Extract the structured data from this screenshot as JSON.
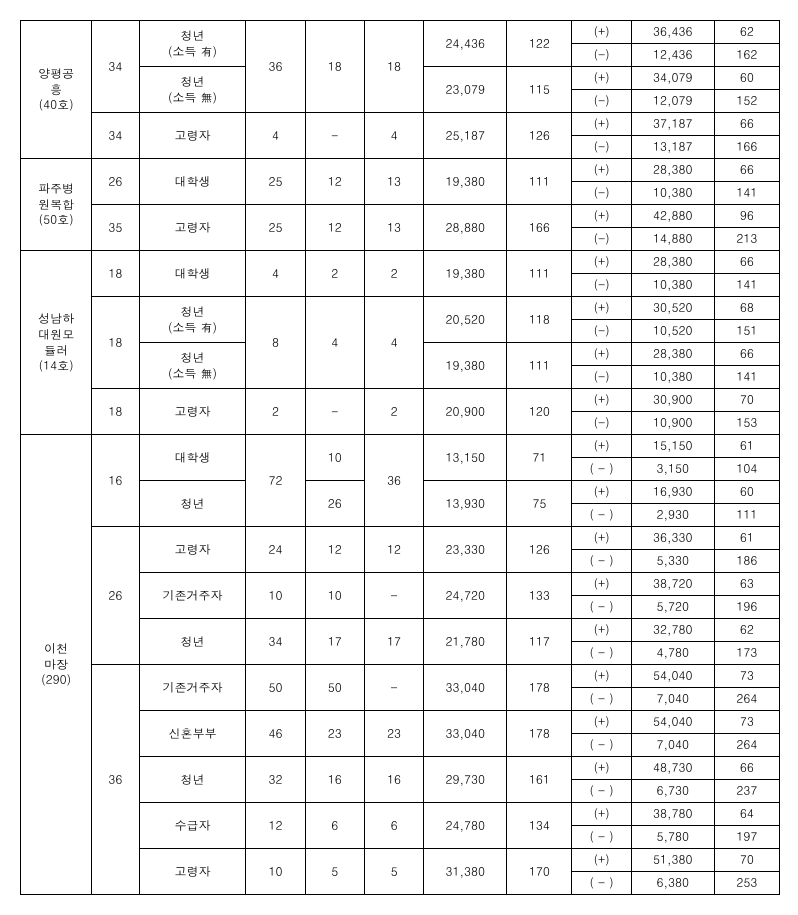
{
  "colWidths": [
    "60px",
    "40px",
    "90px",
    "50px",
    "50px",
    "50px",
    "70px",
    "55px",
    "50px",
    "70px",
    "55px"
  ],
  "rows": [
    [
      {
        "t": "양평공\n흥\n(40호)",
        "rs": 6,
        "cls": "c0"
      },
      {
        "t": "34",
        "rs": 4,
        "cls": "c1"
      },
      {
        "t": "청년\n(소득 有)",
        "rs": 2,
        "cls": "c2"
      },
      {
        "t": "36",
        "rs": 4,
        "cls": "c3"
      },
      {
        "t": "18",
        "rs": 4,
        "cls": "c4"
      },
      {
        "t": "18",
        "rs": 4,
        "cls": "c5"
      },
      {
        "t": "24,436",
        "rs": 2,
        "cls": "c6"
      },
      {
        "t": "122",
        "rs": 2,
        "cls": "c7"
      },
      {
        "t": "(+)",
        "cls": "c8"
      },
      {
        "t": "36,436",
        "cls": "c9"
      },
      {
        "t": "62",
        "cls": "c10"
      }
    ],
    [
      {
        "t": "(-)"
      },
      {
        "t": "12,436"
      },
      {
        "t": "162"
      }
    ],
    [
      {
        "t": "청년\n(소득 無)",
        "rs": 2
      },
      {
        "t": "23,079",
        "rs": 2
      },
      {
        "t": "115",
        "rs": 2
      },
      {
        "t": "(+)"
      },
      {
        "t": "34,079"
      },
      {
        "t": "60"
      }
    ],
    [
      {
        "t": "(-)"
      },
      {
        "t": "12,079"
      },
      {
        "t": "152"
      }
    ],
    [
      {
        "t": "34",
        "rs": 2
      },
      {
        "t": "고령자",
        "rs": 2
      },
      {
        "t": "4",
        "rs": 2
      },
      {
        "t": "-",
        "rs": 2
      },
      {
        "t": "4",
        "rs": 2
      },
      {
        "t": "25,187",
        "rs": 2
      },
      {
        "t": "126",
        "rs": 2
      },
      {
        "t": "(+)"
      },
      {
        "t": "37,187"
      },
      {
        "t": "66"
      }
    ],
    [
      {
        "t": "(-)"
      },
      {
        "t": "13,187"
      },
      {
        "t": "166"
      }
    ],
    [
      {
        "t": "파주병\n원복합\n(50호)",
        "rs": 4
      },
      {
        "t": "26",
        "rs": 2
      },
      {
        "t": "대학생",
        "rs": 2
      },
      {
        "t": "25",
        "rs": 2
      },
      {
        "t": "12",
        "rs": 2
      },
      {
        "t": "13",
        "rs": 2
      },
      {
        "t": "19,380",
        "rs": 2
      },
      {
        "t": "111",
        "rs": 2
      },
      {
        "t": "(+)"
      },
      {
        "t": "28,380"
      },
      {
        "t": "66"
      }
    ],
    [
      {
        "t": "(-)"
      },
      {
        "t": "10,380"
      },
      {
        "t": "141"
      }
    ],
    [
      {
        "t": "35",
        "rs": 2
      },
      {
        "t": "고령자",
        "rs": 2
      },
      {
        "t": "25",
        "rs": 2
      },
      {
        "t": "12",
        "rs": 2
      },
      {
        "t": "13",
        "rs": 2
      },
      {
        "t": "28,880",
        "rs": 2
      },
      {
        "t": "166",
        "rs": 2
      },
      {
        "t": "(+)"
      },
      {
        "t": "42,880"
      },
      {
        "t": "96"
      }
    ],
    [
      {
        "t": "(-)"
      },
      {
        "t": "14,880"
      },
      {
        "t": "213"
      }
    ],
    [
      {
        "t": "성남하\n대원모\n듈러\n(14호)",
        "rs": 8
      },
      {
        "t": "18",
        "rs": 2
      },
      {
        "t": "대학생",
        "rs": 2
      },
      {
        "t": "4",
        "rs": 2
      },
      {
        "t": "2",
        "rs": 2
      },
      {
        "t": "2",
        "rs": 2
      },
      {
        "t": "19,380",
        "rs": 2
      },
      {
        "t": "111",
        "rs": 2
      },
      {
        "t": "(+)"
      },
      {
        "t": "28,380"
      },
      {
        "t": "66"
      }
    ],
    [
      {
        "t": "(-)"
      },
      {
        "t": "10,380"
      },
      {
        "t": "141"
      }
    ],
    [
      {
        "t": "18",
        "rs": 4
      },
      {
        "t": "청년\n(소득 有)",
        "rs": 2
      },
      {
        "t": "8",
        "rs": 4
      },
      {
        "t": "4",
        "rs": 4
      },
      {
        "t": "4",
        "rs": 4
      },
      {
        "t": "20,520",
        "rs": 2
      },
      {
        "t": "118",
        "rs": 2
      },
      {
        "t": "(+)"
      },
      {
        "t": "30,520"
      },
      {
        "t": "68"
      }
    ],
    [
      {
        "t": "(-)"
      },
      {
        "t": "10,520"
      },
      {
        "t": "151"
      }
    ],
    [
      {
        "t": "청년\n(소득 無)",
        "rs": 2
      },
      {
        "t": "19,380",
        "rs": 2
      },
      {
        "t": "111",
        "rs": 2
      },
      {
        "t": "(+)"
      },
      {
        "t": "28,380"
      },
      {
        "t": "66"
      }
    ],
    [
      {
        "t": "(-)"
      },
      {
        "t": "10,380"
      },
      {
        "t": "141"
      }
    ],
    [
      {
        "t": "18",
        "rs": 2
      },
      {
        "t": "고령자",
        "rs": 2
      },
      {
        "t": "2",
        "rs": 2
      },
      {
        "t": "-",
        "rs": 2
      },
      {
        "t": "2",
        "rs": 2
      },
      {
        "t": "20,900",
        "rs": 2
      },
      {
        "t": "120",
        "rs": 2
      },
      {
        "t": "(+)"
      },
      {
        "t": "30,900"
      },
      {
        "t": "70"
      }
    ],
    [
      {
        "t": "(-)"
      },
      {
        "t": "10,900"
      },
      {
        "t": "153"
      }
    ],
    [
      {
        "t": "이천\n마장\n(290)",
        "rs": 20
      },
      {
        "t": "16",
        "rs": 4
      },
      {
        "t": "대학생",
        "rs": 2
      },
      {
        "t": "72",
        "rs": 4
      },
      {
        "t": "10",
        "rs": 2
      },
      {
        "t": "36",
        "rs": 4
      },
      {
        "t": "13,150",
        "rs": 2
      },
      {
        "t": "71",
        "rs": 2
      },
      {
        "t": "(+)"
      },
      {
        "t": "15,150"
      },
      {
        "t": "61"
      }
    ],
    [
      {
        "t": "( - )"
      },
      {
        "t": "3,150"
      },
      {
        "t": "104"
      }
    ],
    [
      {
        "t": "청년",
        "rs": 2
      },
      {
        "t": "26",
        "rs": 2
      },
      {
        "t": "13,930",
        "rs": 2
      },
      {
        "t": "75",
        "rs": 2
      },
      {
        "t": "(+)"
      },
      {
        "t": "16,930"
      },
      {
        "t": "60"
      }
    ],
    [
      {
        "t": "( - )"
      },
      {
        "t": "2,930"
      },
      {
        "t": "111"
      }
    ],
    [
      {
        "t": "26",
        "rs": 6
      },
      {
        "t": "고령자",
        "rs": 2
      },
      {
        "t": "24",
        "rs": 2
      },
      {
        "t": "12",
        "rs": 2
      },
      {
        "t": "12",
        "rs": 2
      },
      {
        "t": "23,330",
        "rs": 2
      },
      {
        "t": "126",
        "rs": 2
      },
      {
        "t": "(+)"
      },
      {
        "t": "36,330"
      },
      {
        "t": "61"
      }
    ],
    [
      {
        "t": "( - )"
      },
      {
        "t": "5,330"
      },
      {
        "t": "186"
      }
    ],
    [
      {
        "t": "기존거주자",
        "rs": 2
      },
      {
        "t": "10",
        "rs": 2
      },
      {
        "t": "10",
        "rs": 2
      },
      {
        "t": "-",
        "rs": 2
      },
      {
        "t": "24,720",
        "rs": 2
      },
      {
        "t": "133",
        "rs": 2
      },
      {
        "t": "(+)"
      },
      {
        "t": "38,720"
      },
      {
        "t": "63"
      }
    ],
    [
      {
        "t": "( - )"
      },
      {
        "t": "5,720"
      },
      {
        "t": "196"
      }
    ],
    [
      {
        "t": "청년",
        "rs": 2
      },
      {
        "t": "34",
        "rs": 2
      },
      {
        "t": "17",
        "rs": 2
      },
      {
        "t": "17",
        "rs": 2
      },
      {
        "t": "21,780",
        "rs": 2
      },
      {
        "t": "117",
        "rs": 2
      },
      {
        "t": "(+)"
      },
      {
        "t": "32,780"
      },
      {
        "t": "62"
      }
    ],
    [
      {
        "t": "( - )"
      },
      {
        "t": "4,780"
      },
      {
        "t": "173"
      }
    ],
    [
      {
        "t": "36",
        "rs": 10
      },
      {
        "t": "기존거주자",
        "rs": 2
      },
      {
        "t": "50",
        "rs": 2
      },
      {
        "t": "50",
        "rs": 2
      },
      {
        "t": "-",
        "rs": 2
      },
      {
        "t": "33,040",
        "rs": 2
      },
      {
        "t": "178",
        "rs": 2
      },
      {
        "t": "(+)"
      },
      {
        "t": "54,040"
      },
      {
        "t": "73"
      }
    ],
    [
      {
        "t": "( - )"
      },
      {
        "t": "7,040"
      },
      {
        "t": "264"
      }
    ],
    [
      {
        "t": "신혼부부",
        "rs": 2
      },
      {
        "t": "46",
        "rs": 2
      },
      {
        "t": "23",
        "rs": 2
      },
      {
        "t": "23",
        "rs": 2
      },
      {
        "t": "33,040",
        "rs": 2
      },
      {
        "t": "178",
        "rs": 2
      },
      {
        "t": "(+)"
      },
      {
        "t": "54,040"
      },
      {
        "t": "73"
      }
    ],
    [
      {
        "t": "( - )"
      },
      {
        "t": "7,040"
      },
      {
        "t": "264"
      }
    ],
    [
      {
        "t": "청년",
        "rs": 2
      },
      {
        "t": "32",
        "rs": 2
      },
      {
        "t": "16",
        "rs": 2
      },
      {
        "t": "16",
        "rs": 2
      },
      {
        "t": "29,730",
        "rs": 2
      },
      {
        "t": "161",
        "rs": 2
      },
      {
        "t": "(+)"
      },
      {
        "t": "48,730"
      },
      {
        "t": "66"
      }
    ],
    [
      {
        "t": "( - )"
      },
      {
        "t": "6,730"
      },
      {
        "t": "237"
      }
    ],
    [
      {
        "t": "수급자",
        "rs": 2
      },
      {
        "t": "12",
        "rs": 2
      },
      {
        "t": "6",
        "rs": 2
      },
      {
        "t": "6",
        "rs": 2
      },
      {
        "t": "24,780",
        "rs": 2
      },
      {
        "t": "134",
        "rs": 2
      },
      {
        "t": "(+)"
      },
      {
        "t": "38,780"
      },
      {
        "t": "64"
      }
    ],
    [
      {
        "t": "( - )"
      },
      {
        "t": "5,780"
      },
      {
        "t": "197"
      }
    ],
    [
      {
        "t": "고령자",
        "rs": 2
      },
      {
        "t": "10",
        "rs": 2
      },
      {
        "t": "5",
        "rs": 2
      },
      {
        "t": "5",
        "rs": 2
      },
      {
        "t": "31,380",
        "rs": 2
      },
      {
        "t": "170",
        "rs": 2
      },
      {
        "t": "(+)"
      },
      {
        "t": "51,380"
      },
      {
        "t": "70"
      }
    ],
    [
      {
        "t": "( - )"
      },
      {
        "t": "6,380"
      },
      {
        "t": "253"
      }
    ]
  ]
}
